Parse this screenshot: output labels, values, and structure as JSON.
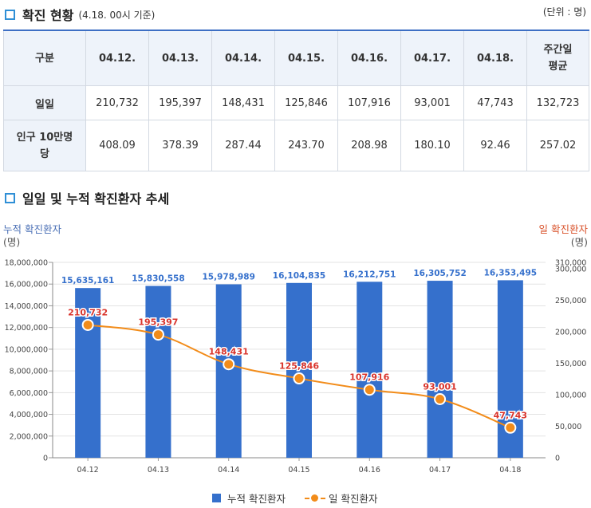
{
  "section1": {
    "title": "확진 현황",
    "subtitle": "(4.18. 00시 기준)",
    "unit": "(단위 : 명)"
  },
  "table": {
    "headers": [
      "구분",
      "04.12.",
      "04.13.",
      "04.14.",
      "04.15.",
      "04.16.",
      "04.17.",
      "04.18.",
      "주간일\n평균"
    ],
    "rows": [
      {
        "label": "일일",
        "values": [
          "210,732",
          "195,397",
          "148,431",
          "125,846",
          "107,916",
          "93,001",
          "47,743",
          "132,723"
        ]
      },
      {
        "label": "인구 10만명\n당",
        "values": [
          "408.09",
          "378.39",
          "287.44",
          "243.70",
          "208.98",
          "180.10",
          "92.46",
          "257.02"
        ]
      }
    ]
  },
  "section2": {
    "title": "일일 및 누적 확진환자 추세"
  },
  "colors": {
    "bar": "#3570cc",
    "line": "#f28c1a",
    "left_axis": "#4a6fb5",
    "right_axis": "#d9532c",
    "line_label": "#d9342c"
  },
  "chart_data": {
    "type": "bar+line",
    "categories": [
      "04.12",
      "04.13",
      "04.14",
      "04.15",
      "04.16",
      "04.17",
      "04.18"
    ],
    "series": [
      {
        "name": "누적 확진환자",
        "type": "bar",
        "axis": "left",
        "values": [
          15635161,
          15830558,
          15978989,
          16104835,
          16212751,
          16305752,
          16353495
        ],
        "labels": [
          "15,635,161",
          "15,830,558",
          "15,978,989",
          "16,104,835",
          "16,212,751",
          "16,305,752",
          "16,353,495"
        ]
      },
      {
        "name": "일 확진환자",
        "type": "line",
        "axis": "right",
        "values": [
          210732,
          195397,
          148431,
          125846,
          107916,
          93001,
          47743
        ],
        "labels": [
          "210,732",
          "195,397",
          "148,431",
          "125,846",
          "107,916",
          "93,001",
          "47,743"
        ]
      }
    ],
    "left_axis": {
      "title": "누적 확진환자",
      "unit": "(명)",
      "range": [
        0,
        18000000
      ],
      "ticks": [
        0,
        2000000,
        4000000,
        6000000,
        8000000,
        10000000,
        12000000,
        14000000,
        16000000,
        18000000
      ],
      "tick_labels": [
        "0",
        "2,000,000",
        "4,000,000",
        "6,000,000",
        "8,000,000",
        "10,000,000",
        "12,000,000",
        "14,000,000",
        "16,000,000",
        "18,000,000"
      ]
    },
    "right_axis": {
      "title": "일 확진환자",
      "unit": "(명)",
      "range": [
        0,
        310000
      ],
      "ticks": [
        0,
        50000,
        100000,
        150000,
        200000,
        250000,
        300000,
        310000
      ],
      "tick_labels": [
        "0",
        "50,000",
        "100,000",
        "150,000",
        "200,000",
        "250,000",
        "300,000",
        "310,000"
      ]
    },
    "legend": [
      "누적 확진환자",
      "일 확진환자"
    ],
    "legend_position": "bottom"
  }
}
